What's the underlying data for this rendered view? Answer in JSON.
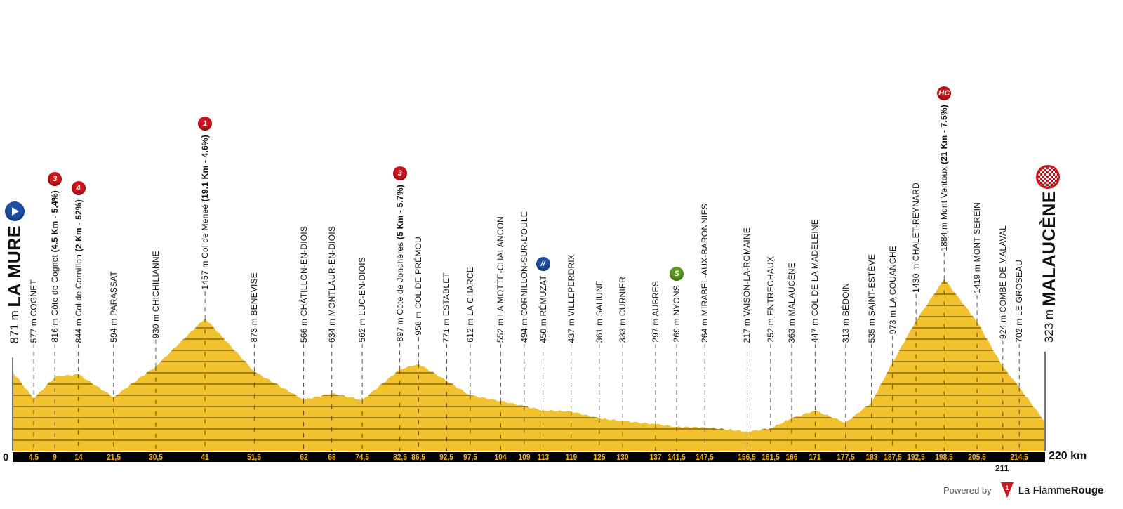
{
  "chart_data": {
    "type": "area",
    "title": "",
    "xlabel": "",
    "ylabel": "",
    "x_unit": "km",
    "y_unit": "m",
    "xlim": [
      0,
      220
    ],
    "fill_color": "#f2c12e",
    "stripe_color": "#8a6a10",
    "axis_bar_color": "#000000",
    "tick_label_color": "#f2b319",
    "x_axis_start_label": "0",
    "x_axis_end_label": "220 km",
    "extra_tick_label": "211",
    "km_ticks": [
      "4,5",
      "9",
      "14",
      "21,5",
      "30,5",
      "41",
      "51,5",
      "62",
      "68",
      "74,5",
      "82,5",
      "86,5",
      "92,5",
      "97,5",
      "104",
      "109",
      "113",
      "119",
      "125",
      "130",
      "137",
      "141,5",
      "147,5",
      "156,5",
      "161,5",
      "166",
      "171",
      "177,5",
      "183",
      "187,5",
      "192,5",
      "198,5",
      "205,5",
      "214,5"
    ],
    "start": {
      "km": 0,
      "elevation": 871,
      "elev_text": "871 m",
      "name": "LA MURE",
      "icon": "start-play-icon",
      "color": "#1d4fa3"
    },
    "finish": {
      "km": 220,
      "elevation": 323,
      "elev_text": "323 m",
      "name": "MALAUCÈNE",
      "icon": "finish-checkered-flag-icon",
      "color": "#d0141b"
    },
    "waypoints": [
      {
        "km": 4.5,
        "elevation": 577,
        "label": "577 m COGNET"
      },
      {
        "km": 9,
        "elevation": 816,
        "label": "816 m Côte de Cognet",
        "detail": "(4.5 Km - 5.4%)",
        "badge": "3",
        "badge_type": "climb-cat-3",
        "badge_color": "#d0141b"
      },
      {
        "km": 14,
        "elevation": 844,
        "label": "844 m Col de Cornillon",
        "detail": "(2 Km - 52%)",
        "badge": "4",
        "badge_type": "climb-cat-4",
        "badge_color": "#d0141b"
      },
      {
        "km": 21.5,
        "elevation": 594,
        "label": "594 m PARASSAT"
      },
      {
        "km": 30.5,
        "elevation": 930,
        "label": "930 m CHICHILIANNE"
      },
      {
        "km": 41,
        "elevation": 1457,
        "label": "1457 m Col de Meneé",
        "detail": "(19.1 Km - 4.6%)",
        "badge": "1",
        "badge_type": "climb-cat-1",
        "badge_color": "#d0141b"
      },
      {
        "km": 51.5,
        "elevation": 873,
        "label": "873 m BENEVISE"
      },
      {
        "km": 62,
        "elevation": 566,
        "label": "566 m CHÂTILLON-EN-DIOIS"
      },
      {
        "km": 68,
        "elevation": 634,
        "label": "634 m MONTLAUR-EN-DIOIS"
      },
      {
        "km": 74.5,
        "elevation": 562,
        "label": "562 m LUC-EN-DIOIS"
      },
      {
        "km": 82.5,
        "elevation": 897,
        "label": "897 m Côte de Jonchères",
        "detail": "(5 Km - 5.7%)",
        "badge": "3",
        "badge_type": "climb-cat-3",
        "badge_color": "#d0141b"
      },
      {
        "km": 86.5,
        "elevation": 958,
        "label": "958 m COL DE PRÉMOU"
      },
      {
        "km": 92.5,
        "elevation": 771,
        "label": "771 m ESTABLET"
      },
      {
        "km": 97.5,
        "elevation": 612,
        "label": "612 m LA CHARCE"
      },
      {
        "km": 104,
        "elevation": 552,
        "label": "552 m LA MOTTE-CHALANCON"
      },
      {
        "km": 109,
        "elevation": 494,
        "label": "494 m CORNILLON-SUR-L'OULE"
      },
      {
        "km": 113,
        "elevation": 450,
        "label": "450 m RÉMUZAT",
        "badge": "//",
        "badge_type": "feed-zone",
        "badge_color": "#1d4fa3"
      },
      {
        "km": 119,
        "elevation": 437,
        "label": "437 m VILLEPERDRIX"
      },
      {
        "km": 125,
        "elevation": 361,
        "label": "361 m SAHUNE"
      },
      {
        "km": 130,
        "elevation": 333,
        "label": "333 m CURNIER"
      },
      {
        "km": 137,
        "elevation": 297,
        "label": "297 m AUBRES"
      },
      {
        "km": 141.5,
        "elevation": 269,
        "label": "269 m NYONS",
        "badge": "S",
        "badge_type": "sprint",
        "badge_color": "#5a9e1a"
      },
      {
        "km": 147.5,
        "elevation": 264,
        "label": "264 m MIRABEL-AUX-BARONNIES"
      },
      {
        "km": 156.5,
        "elevation": 217,
        "label": "217 m VAISON-LA-ROMAINE"
      },
      {
        "km": 161.5,
        "elevation": 252,
        "label": "252 m ENTRECHAUX"
      },
      {
        "km": 166,
        "elevation": 363,
        "label": "363 m MALAUCÈNE"
      },
      {
        "km": 171,
        "elevation": 447,
        "label": "447 m COL DE LA MADELEINE"
      },
      {
        "km": 177.5,
        "elevation": 313,
        "label": "313 m BÉDOIN"
      },
      {
        "km": 183,
        "elevation": 535,
        "label": "535 m SAINT-ESTÈVE"
      },
      {
        "km": 187.5,
        "elevation": 973,
        "label": "973 m LA COUANCHE"
      },
      {
        "km": 192.5,
        "elevation": 1430,
        "label": "1430 m CHALET-REYNARD"
      },
      {
        "km": 198.5,
        "elevation": 1884,
        "label": "1884 m Mont Ventoux",
        "detail": "(21 Km - 7.5%)",
        "badge": "HC",
        "badge_type": "climb-hors-categorie",
        "badge_color": "#d0141b"
      },
      {
        "km": 205.5,
        "elevation": 1419,
        "label": "1419 m MONT SEREIN"
      },
      {
        "km": 211,
        "elevation": 924,
        "label": "924 m COMBE DE MALAVAL"
      },
      {
        "km": 214.5,
        "elevation": 702,
        "label": "702 m LE GROSEAU"
      }
    ]
  },
  "footer": {
    "powered_by": "Powered by",
    "brand_light": "La Flamme",
    "brand_bold": "Rouge",
    "logo_digit": "1",
    "logo_color": "#d0141b"
  }
}
